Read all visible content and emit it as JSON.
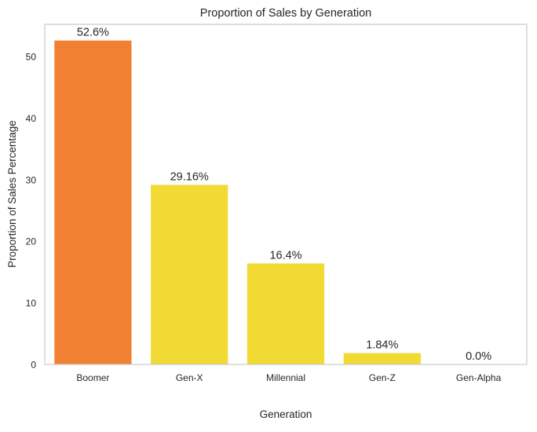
{
  "chart_data": {
    "type": "bar",
    "title": "Proportion of Sales by Generation",
    "xlabel": "Generation",
    "ylabel": "Proportion of Sales Percentage",
    "categories": [
      "Boomer",
      "Gen-X",
      "Millennial",
      "Gen-Z",
      "Gen-Alpha"
    ],
    "values": [
      52.6,
      29.16,
      16.4,
      1.84,
      0.0
    ],
    "data_labels": [
      "52.6%",
      "29.16%",
      "16.4%",
      "1.84%",
      "0.0%"
    ],
    "bar_colors": [
      "#f28033",
      "#f0da33",
      "#f0da33",
      "#f0da33",
      "#f0da33"
    ],
    "ylim": [
      0,
      55.23
    ],
    "yticks": [
      0,
      10,
      20,
      30,
      40,
      50
    ],
    "grid": false,
    "legend": "none"
  },
  "style": {
    "axis_color": "#cccccc",
    "text_color": "#262626"
  }
}
